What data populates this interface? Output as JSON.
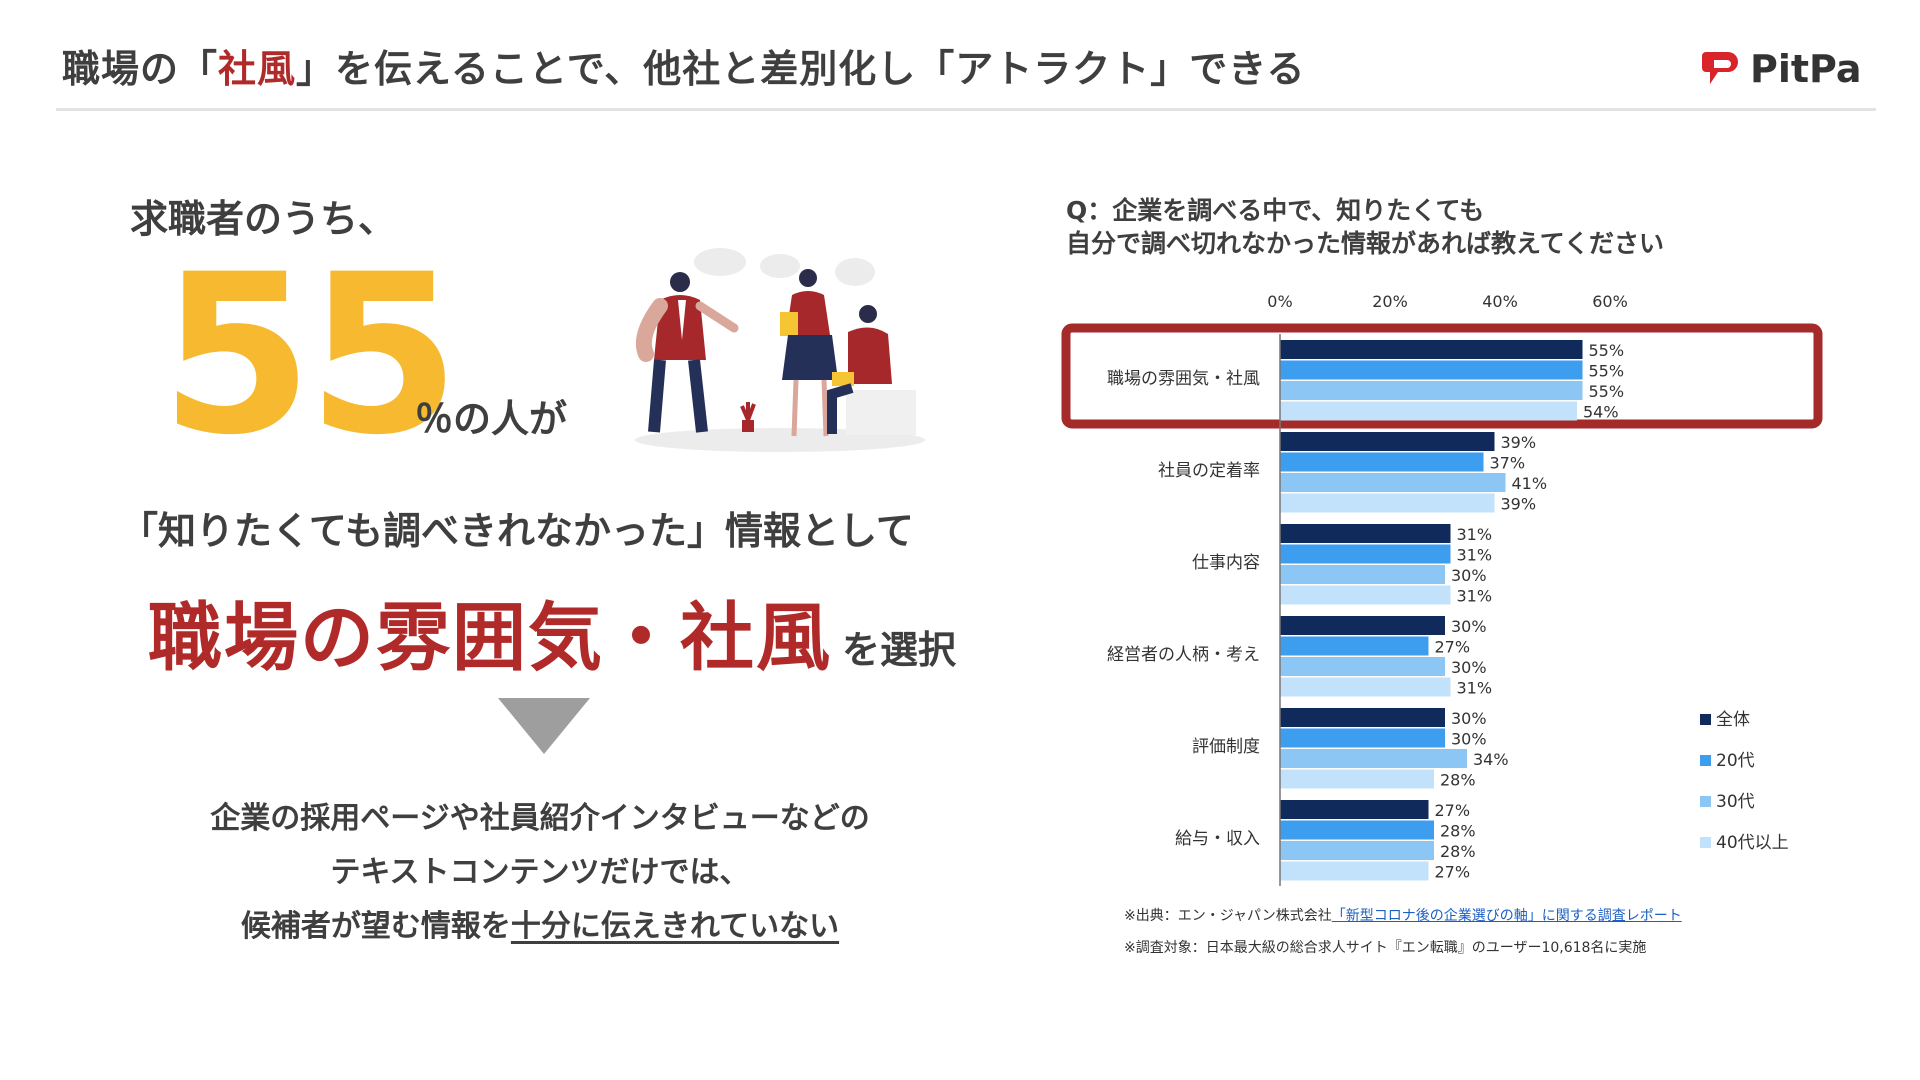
{
  "header": {
    "title_before": "職場の「",
    "title_accent": "社風",
    "title_after": "」を伝えることで、他社と差別化し「アトラクト」できる",
    "logo_text": "PitPa"
  },
  "left": {
    "intro": "求職者のうち、",
    "big_number": "55",
    "number_suffix": "％の人が",
    "line2": "「知りたくても調べきれなかった」情報として",
    "highlight": "職場の雰囲気・社風",
    "highlight_suffix": "を選択",
    "body_line1": "企業の採用ページや社員紹介インタビューなどの",
    "body_line2": "テキストコンテンツだけでは、",
    "body_line3_plain": "候補者が望む情報を",
    "body_line3_underlined": "十分に伝えきれていない"
  },
  "question": {
    "line1": "Q：企業を調べる中で、知りたくても",
    "line2": "自分で調べ切れなかった情報があれば教えてください"
  },
  "chart_data": {
    "type": "bar",
    "orientation": "horizontal",
    "categories": [
      "職場の雰囲気・社風",
      "社員の定着率",
      "仕事内容",
      "経営者の人柄・考え",
      "評価制度",
      "給与・収入"
    ],
    "series": [
      {
        "name": "全体",
        "color": "#102a5c",
        "values": [
          55,
          39,
          31,
          30,
          30,
          27
        ]
      },
      {
        "name": "20代",
        "color": "#3d9ef0",
        "values": [
          55,
          37,
          31,
          27,
          30,
          28
        ]
      },
      {
        "name": "30代",
        "color": "#8cc6f4",
        "values": [
          55,
          41,
          30,
          30,
          34,
          28
        ]
      },
      {
        "name": "40代以上",
        "color": "#c2e1fa",
        "values": [
          54,
          39,
          31,
          31,
          28,
          27
        ]
      }
    ],
    "xticks": [
      "0%",
      "20%",
      "40%",
      "60%"
    ],
    "xlim": [
      0,
      60
    ],
    "legend_position": "right",
    "highlighted_category": "職場の雰囲気・社風",
    "highlight_color": "#a52a2a",
    "value_suffix": "%"
  },
  "footnotes": {
    "source_prefix": "※出典：エン・ジャパン株式会社",
    "source_link": "「新型コロナ後の企業選びの軸」に関する調査レポート",
    "target": "※調査対象：日本最大級の総合求人サイト『エン転職』のユーザー10,618名に実施"
  },
  "colors": {
    "accent_red": "#b02a2a",
    "accent_yellow": "#f7b930",
    "text_dark": "#3f3f3f"
  },
  "icons": [
    "pitpa-logo-icon",
    "down-arrow-icon",
    "office-people-illustration"
  ]
}
